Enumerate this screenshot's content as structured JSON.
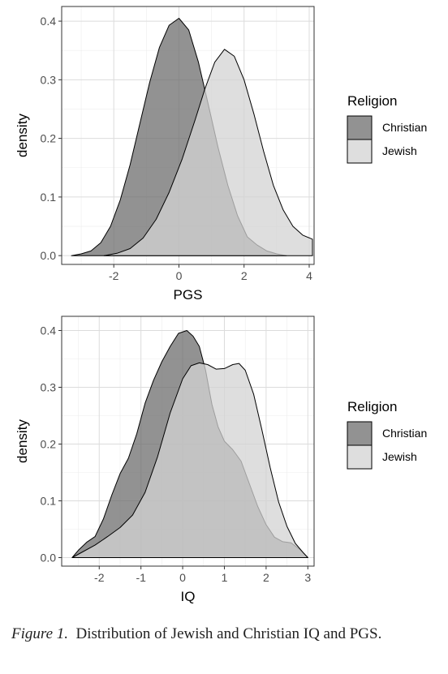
{
  "chart_data": [
    {
      "type": "area",
      "id": "pgs",
      "xlabel": "PGS",
      "ylabel": "density",
      "xlim": [
        -3.6,
        4.15
      ],
      "ylim": [
        -0.015,
        0.425
      ],
      "xticks": [
        -2,
        0,
        2,
        4
      ],
      "yticks": [
        0.0,
        0.1,
        0.2,
        0.3,
        0.4
      ],
      "ytick_labels": [
        "0.0",
        "0.1",
        "0.2",
        "0.3",
        "0.4"
      ],
      "grid": true,
      "legend": {
        "title": "Religion",
        "position": "right"
      },
      "series": [
        {
          "name": "Christian",
          "color": "#6e6e6e",
          "points": [
            [
              -3.3,
              0.0
            ],
            [
              -3.0,
              0.003
            ],
            [
              -2.7,
              0.008
            ],
            [
              -2.4,
              0.022
            ],
            [
              -2.1,
              0.05
            ],
            [
              -1.8,
              0.095
            ],
            [
              -1.5,
              0.155
            ],
            [
              -1.2,
              0.225
            ],
            [
              -0.9,
              0.295
            ],
            [
              -0.6,
              0.355
            ],
            [
              -0.3,
              0.393
            ],
            [
              0.0,
              0.405
            ],
            [
              0.3,
              0.385
            ],
            [
              0.6,
              0.33
            ],
            [
              0.9,
              0.258
            ],
            [
              1.2,
              0.185
            ],
            [
              1.5,
              0.12
            ],
            [
              1.8,
              0.068
            ],
            [
              2.1,
              0.032
            ],
            [
              2.4,
              0.018
            ],
            [
              2.7,
              0.008
            ],
            [
              3.0,
              0.003
            ],
            [
              3.3,
              0.0
            ]
          ]
        },
        {
          "name": "Jewish",
          "color": "#d3d3d3",
          "points": [
            [
              -2.3,
              0.0
            ],
            [
              -1.9,
              0.004
            ],
            [
              -1.5,
              0.012
            ],
            [
              -1.1,
              0.03
            ],
            [
              -0.7,
              0.062
            ],
            [
              -0.3,
              0.108
            ],
            [
              0.1,
              0.165
            ],
            [
              0.5,
              0.232
            ],
            [
              0.8,
              0.285
            ],
            [
              1.1,
              0.33
            ],
            [
              1.4,
              0.352
            ],
            [
              1.7,
              0.34
            ],
            [
              2.0,
              0.3
            ],
            [
              2.3,
              0.242
            ],
            [
              2.6,
              0.178
            ],
            [
              2.9,
              0.12
            ],
            [
              3.2,
              0.078
            ],
            [
              3.5,
              0.05
            ],
            [
              3.8,
              0.035
            ],
            [
              4.1,
              0.028
            ]
          ]
        }
      ]
    },
    {
      "type": "area",
      "id": "iq",
      "xlabel": "IQ",
      "ylabel": "density",
      "xlim": [
        -2.9,
        3.15
      ],
      "ylim": [
        -0.015,
        0.425
      ],
      "xticks": [
        -2,
        -1,
        0,
        1,
        2,
        3
      ],
      "yticks": [
        0.0,
        0.1,
        0.2,
        0.3,
        0.4
      ],
      "ytick_labels": [
        "0.0",
        "0.1",
        "0.2",
        "0.3",
        "0.4"
      ],
      "grid": true,
      "legend": {
        "title": "Religion",
        "position": "right"
      },
      "series": [
        {
          "name": "Christian",
          "color": "#6e6e6e",
          "points": [
            [
              -2.65,
              0.0
            ],
            [
              -2.5,
              0.013
            ],
            [
              -2.3,
              0.027
            ],
            [
              -2.1,
              0.037
            ],
            [
              -1.9,
              0.068
            ],
            [
              -1.7,
              0.11
            ],
            [
              -1.5,
              0.148
            ],
            [
              -1.3,
              0.175
            ],
            [
              -1.1,
              0.218
            ],
            [
              -0.9,
              0.272
            ],
            [
              -0.7,
              0.312
            ],
            [
              -0.5,
              0.345
            ],
            [
              -0.3,
              0.372
            ],
            [
              -0.1,
              0.395
            ],
            [
              0.1,
              0.4
            ],
            [
              0.25,
              0.39
            ],
            [
              0.4,
              0.372
            ],
            [
              0.55,
              0.33
            ],
            [
              0.7,
              0.27
            ],
            [
              0.85,
              0.23
            ],
            [
              1.0,
              0.205
            ],
            [
              1.2,
              0.19
            ],
            [
              1.4,
              0.17
            ],
            [
              1.6,
              0.13
            ],
            [
              1.8,
              0.09
            ],
            [
              2.0,
              0.058
            ],
            [
              2.2,
              0.036
            ],
            [
              2.4,
              0.028
            ],
            [
              2.6,
              0.026
            ],
            [
              2.8,
              0.015
            ],
            [
              3.0,
              0.0
            ]
          ]
        },
        {
          "name": "Jewish",
          "color": "#d3d3d3",
          "points": [
            [
              -2.65,
              0.0
            ],
            [
              -2.4,
              0.01
            ],
            [
              -2.1,
              0.022
            ],
            [
              -1.8,
              0.037
            ],
            [
              -1.5,
              0.053
            ],
            [
              -1.2,
              0.075
            ],
            [
              -0.9,
              0.115
            ],
            [
              -0.6,
              0.178
            ],
            [
              -0.3,
              0.255
            ],
            [
              0.0,
              0.315
            ],
            [
              0.2,
              0.338
            ],
            [
              0.4,
              0.343
            ],
            [
              0.6,
              0.34
            ],
            [
              0.8,
              0.332
            ],
            [
              1.0,
              0.333
            ],
            [
              1.2,
              0.34
            ],
            [
              1.35,
              0.342
            ],
            [
              1.5,
              0.33
            ],
            [
              1.7,
              0.288
            ],
            [
              1.9,
              0.225
            ],
            [
              2.1,
              0.158
            ],
            [
              2.3,
              0.098
            ],
            [
              2.5,
              0.055
            ],
            [
              2.7,
              0.025
            ],
            [
              2.9,
              0.008
            ],
            [
              3.0,
              0.0
            ]
          ]
        }
      ]
    }
  ],
  "caption": {
    "label": "Figure 1.",
    "text": "Distribution of Jewish and Christian IQ and PGS."
  }
}
